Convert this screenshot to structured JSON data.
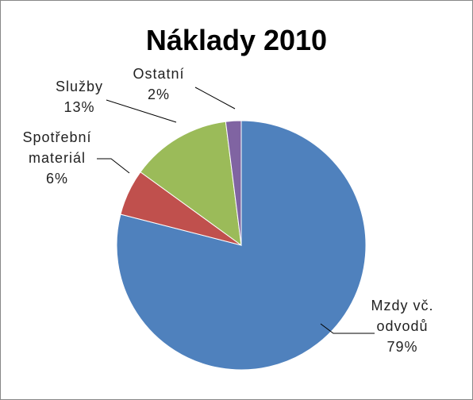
{
  "chart_data": {
    "type": "pie",
    "title": "Náklady 2010",
    "categories": [
      "Mzdy vč. odvodů",
      "Spotřební materiál",
      "Služby",
      "Ostatní"
    ],
    "values": [
      79,
      6,
      13,
      2
    ],
    "value_labels": [
      "79%",
      "6%",
      "13%",
      "2%"
    ],
    "colors": [
      "#4f81bd",
      "#c0504d",
      "#9bbb59",
      "#8064a2"
    ]
  }
}
